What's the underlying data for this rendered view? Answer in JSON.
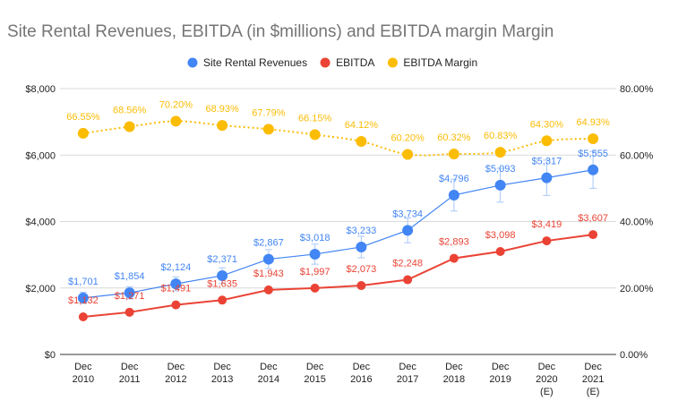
{
  "chart_data": {
    "type": "line",
    "title": "Site Rental Revenues, EBITDA (in $millions) and EBITDA margin Margin",
    "categories": [
      [
        "Dec",
        "2010"
      ],
      [
        "Dec",
        "2011"
      ],
      [
        "Dec",
        "2012"
      ],
      [
        "Dec",
        "2013"
      ],
      [
        "Dec",
        "2014"
      ],
      [
        "Dec",
        "2015"
      ],
      [
        "Dec",
        "2016"
      ],
      [
        "Dec",
        "2017"
      ],
      [
        "Dec",
        "2018"
      ],
      [
        "Dec",
        "2019"
      ],
      [
        "Dec",
        "2020",
        "(E)"
      ],
      [
        "Dec",
        "2021",
        "(E)"
      ]
    ],
    "y_left": {
      "ylim": [
        0,
        8000
      ],
      "ticks": [
        0,
        2000,
        4000,
        6000,
        8000
      ],
      "tick_labels": [
        "$0",
        "$2,000",
        "$4,000",
        "$6,000",
        "$8,000"
      ]
    },
    "y_right": {
      "ylim": [
        0,
        80
      ],
      "ticks": [
        0,
        20,
        40,
        60,
        80
      ],
      "tick_labels": [
        "0.00%",
        "20.00%",
        "40.00%",
        "60.00%",
        "80.00%"
      ]
    },
    "grid": true,
    "legend_position": "top",
    "series": [
      {
        "name": "Site Rental Revenues",
        "axis": "left",
        "color": "#4285f4",
        "style": "solid",
        "values": [
          1701,
          1854,
          2124,
          2371,
          2867,
          3018,
          3233,
          3734,
          4796,
          5093,
          5317,
          5555
        ],
        "labels": [
          "$1,701",
          "$1,854",
          "$2,124",
          "$2,371",
          "$2,867",
          "$3,018",
          "$3,233",
          "$3,734",
          "$4,796",
          "$5,093",
          "$5,317",
          "$5,555"
        ],
        "error_bars": [
          170,
          185,
          212,
          237,
          287,
          302,
          323,
          373,
          480,
          509,
          532,
          555
        ]
      },
      {
        "name": "EBITDA",
        "axis": "left",
        "color": "#ea4335",
        "style": "solid",
        "values": [
          1132,
          1271,
          1491,
          1635,
          1943,
          1997,
          2073,
          2248,
          2893,
          3098,
          3419,
          3607
        ],
        "labels": [
          "$1,132",
          "$1,271",
          "$1,491",
          "$1,635",
          "$1,943",
          "$1,997",
          "$2,073",
          "$2,248",
          "$2,893",
          "$3,098",
          "$3,419",
          "$3,607"
        ]
      },
      {
        "name": "EBITDA Margin",
        "axis": "right",
        "color": "#fbbc04",
        "style": "dotted",
        "values": [
          66.55,
          68.56,
          70.2,
          68.93,
          67.79,
          66.15,
          64.12,
          60.2,
          60.32,
          60.83,
          64.3,
          64.93
        ],
        "labels": [
          "66.55%",
          "68.56%",
          "70.20%",
          "68.93%",
          "67.79%",
          "66.15%",
          "64.12%",
          "60.20%",
          "60.32%",
          "60.83%",
          "64.30%",
          "64.93%"
        ]
      }
    ]
  }
}
